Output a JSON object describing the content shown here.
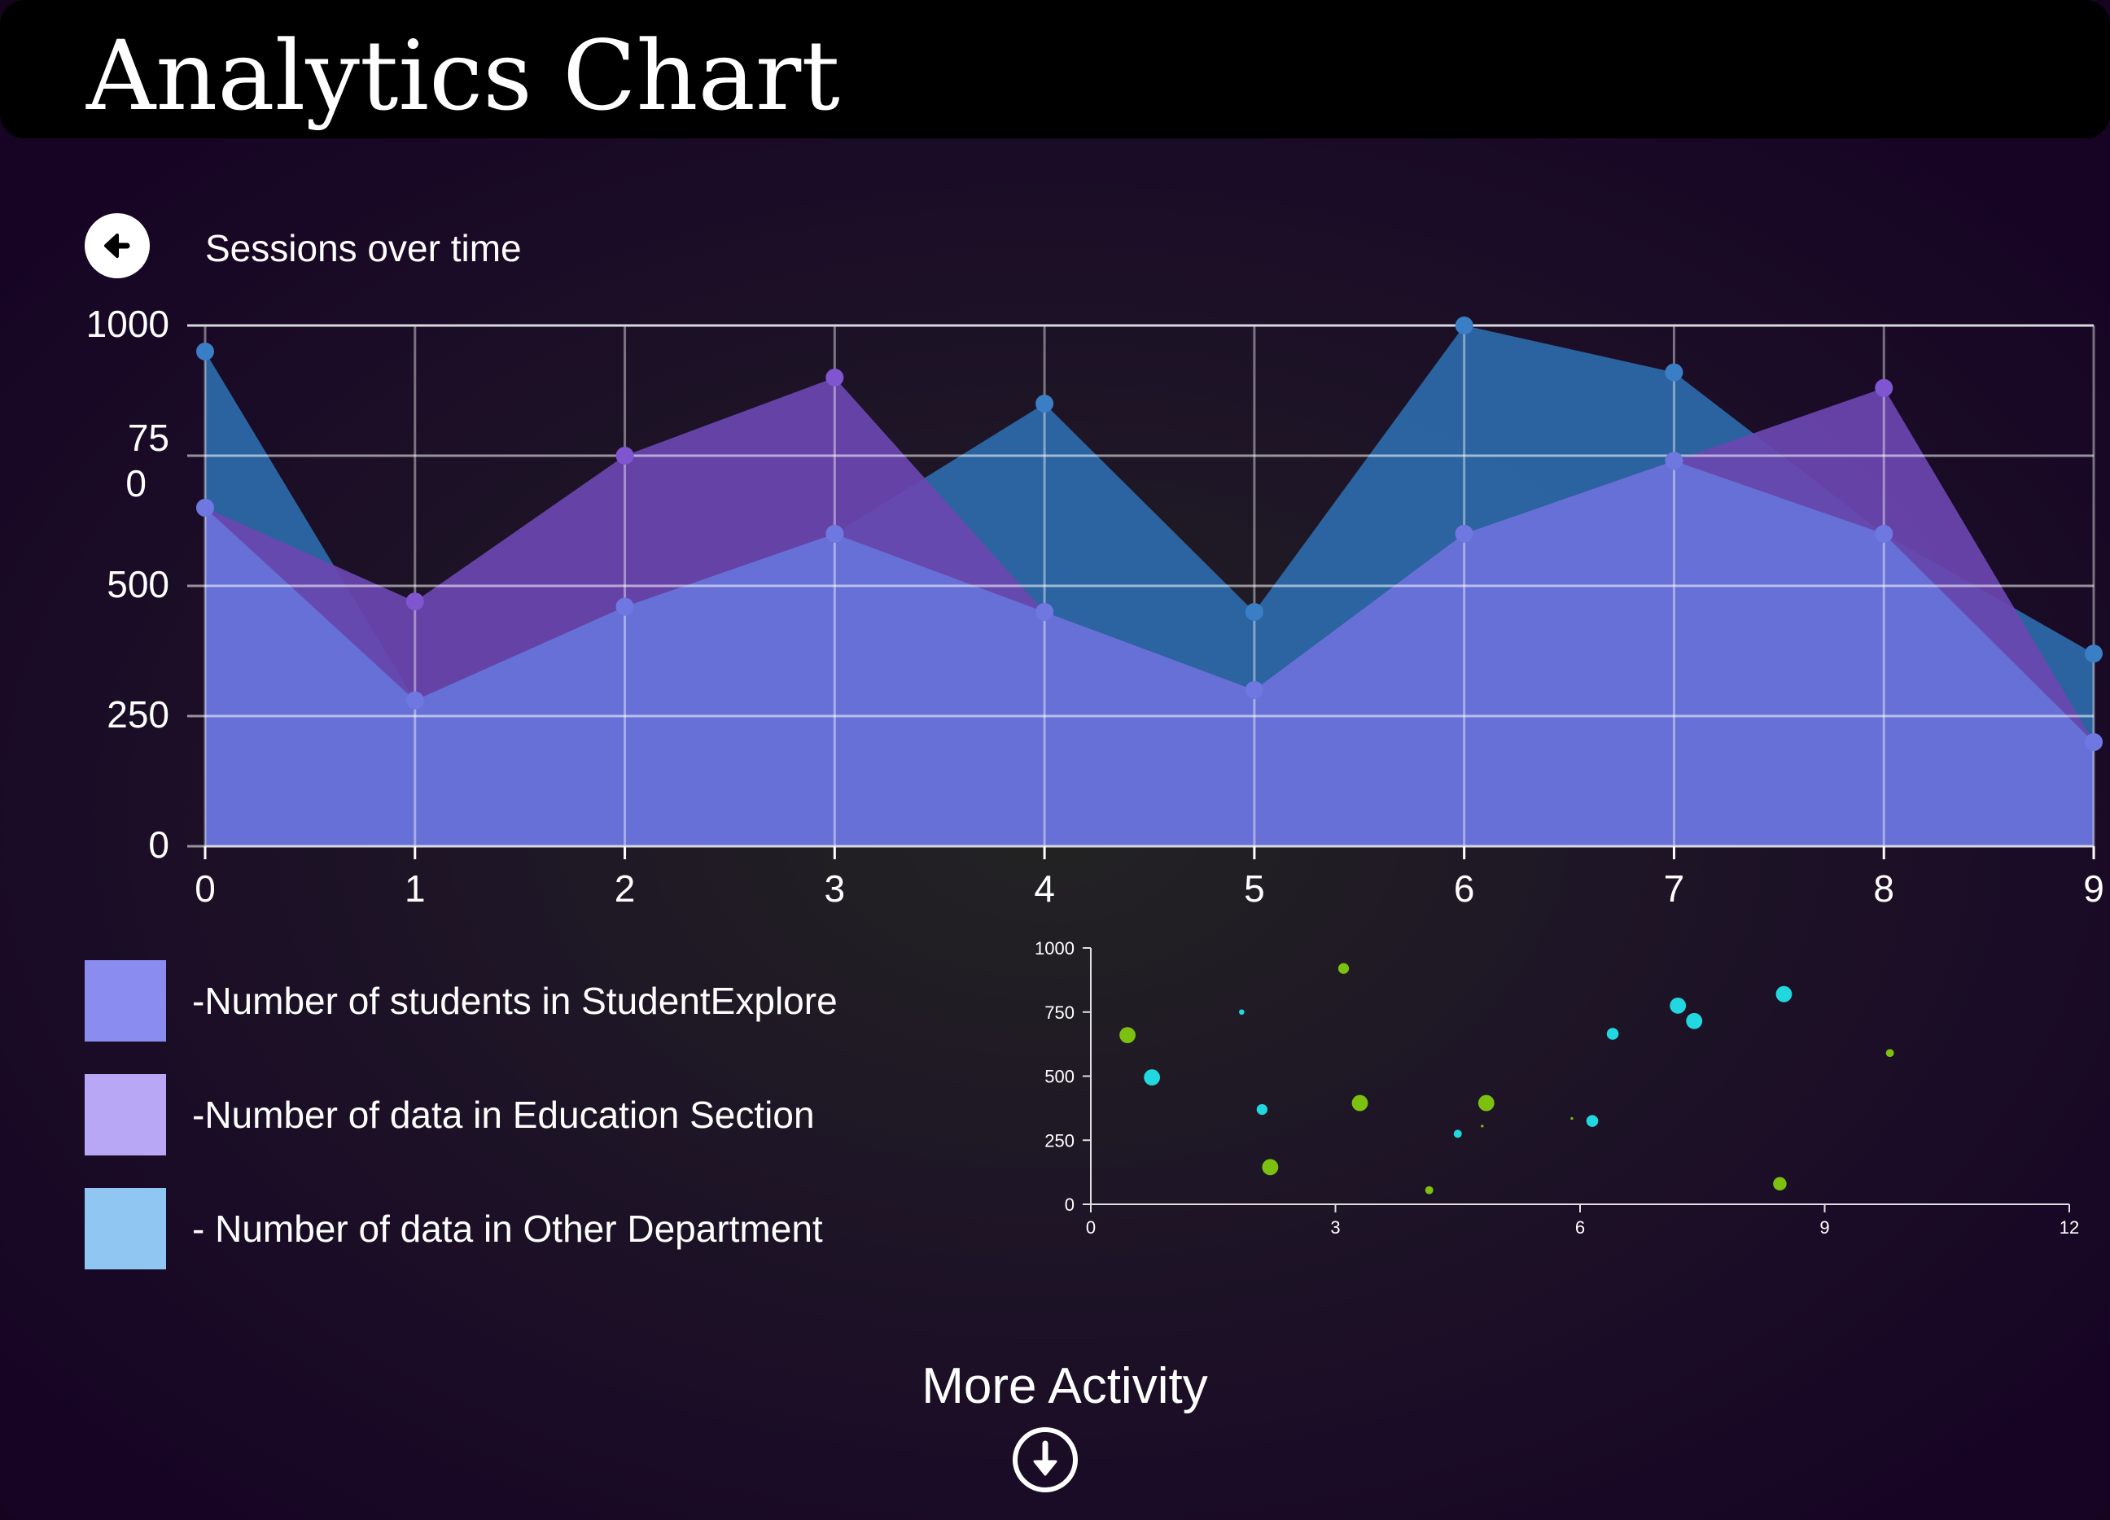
{
  "header": {
    "title": "Analytics Chart"
  },
  "section": {
    "title": "Sessions over time",
    "back_icon": "arrow-left-icon"
  },
  "colors": {
    "students": "#8a8cf0",
    "education": "#b8a7f5",
    "other": "#8fc6f2",
    "students_fill": "#6670d6",
    "education_fill": "#6b46b0",
    "other_fill": "#2c68a8",
    "scatter_cyan": "#22d8e0",
    "scatter_green": "#7cc010"
  },
  "legend": [
    {
      "key": "students",
      "label": "-Number of students in StudentExplore"
    },
    {
      "key": "education",
      "label": "-Number of data in Education Section"
    },
    {
      "key": "other",
      "label": "- Number of data in Other Department"
    }
  ],
  "chart_data": [
    {
      "type": "area",
      "title": "Sessions over time",
      "x": [
        0,
        1,
        2,
        3,
        4,
        5,
        6,
        7,
        8,
        9
      ],
      "xlim": [
        0,
        9
      ],
      "ylim": [
        0,
        1000
      ],
      "x_ticks": [
        "0",
        "1",
        "2",
        "3",
        "4",
        "5",
        "6",
        "7",
        "8",
        "9"
      ],
      "y_ticks": [
        {
          "value": 0,
          "label": "0"
        },
        {
          "value": 250,
          "label": "250"
        },
        {
          "value": 500,
          "label": "500"
        },
        {
          "value": 750,
          "label": "75\n0"
        },
        {
          "value": 1000,
          "label": "1000"
        }
      ],
      "grid": true,
      "series": [
        {
          "name": "- Number of data in Other Department",
          "key": "other",
          "values": [
            950,
            280,
            460,
            600,
            850,
            450,
            1000,
            910,
            600,
            370
          ]
        },
        {
          "name": "-Number of data in Education Section",
          "key": "education",
          "values": [
            650,
            470,
            750,
            900,
            450,
            300,
            600,
            740,
            880,
            200
          ]
        },
        {
          "name": "-Number of students in StudentExplore",
          "key": "students",
          "values": [
            650,
            280,
            460,
            600,
            450,
            300,
            600,
            740,
            600,
            200
          ]
        }
      ]
    },
    {
      "type": "scatter",
      "xlim": [
        0,
        12
      ],
      "ylim": [
        0,
        1000
      ],
      "x_ticks": [
        0,
        3,
        6,
        9,
        12
      ],
      "y_ticks": [
        0,
        250,
        500,
        750,
        1000
      ],
      "points": [
        {
          "x": 0.45,
          "y": 660,
          "size": 3,
          "color": "green"
        },
        {
          "x": 0.75,
          "y": 495,
          "size": 3,
          "color": "cyan"
        },
        {
          "x": 1.85,
          "y": 750,
          "size": 1,
          "color": "cyan"
        },
        {
          "x": 2.1,
          "y": 370,
          "size": 2,
          "color": "cyan"
        },
        {
          "x": 2.2,
          "y": 145,
          "size": 3,
          "color": "green"
        },
        {
          "x": 3.1,
          "y": 920,
          "size": 2,
          "color": "green"
        },
        {
          "x": 3.3,
          "y": 395,
          "size": 3,
          "color": "green"
        },
        {
          "x": 4.15,
          "y": 55,
          "size": 1.5,
          "color": "green"
        },
        {
          "x": 4.5,
          "y": 275,
          "size": 1.5,
          "color": "cyan"
        },
        {
          "x": 4.8,
          "y": 305,
          "size": 0.5,
          "color": "green"
        },
        {
          "x": 4.85,
          "y": 395,
          "size": 3,
          "color": "green"
        },
        {
          "x": 5.9,
          "y": 335,
          "size": 0.5,
          "color": "green"
        },
        {
          "x": 6.15,
          "y": 325,
          "size": 2.2,
          "color": "cyan"
        },
        {
          "x": 6.4,
          "y": 665,
          "size": 2.2,
          "color": "cyan"
        },
        {
          "x": 7.2,
          "y": 775,
          "size": 3,
          "color": "cyan"
        },
        {
          "x": 7.4,
          "y": 715,
          "size": 3,
          "color": "cyan"
        },
        {
          "x": 8.45,
          "y": 80,
          "size": 2.5,
          "color": "green"
        },
        {
          "x": 8.5,
          "y": 820,
          "size": 3,
          "color": "cyan"
        },
        {
          "x": 9.8,
          "y": 590,
          "size": 1.5,
          "color": "green"
        }
      ]
    }
  ],
  "footer": {
    "more_label": "More Activity",
    "down_icon": "arrow-down-circle-icon"
  }
}
